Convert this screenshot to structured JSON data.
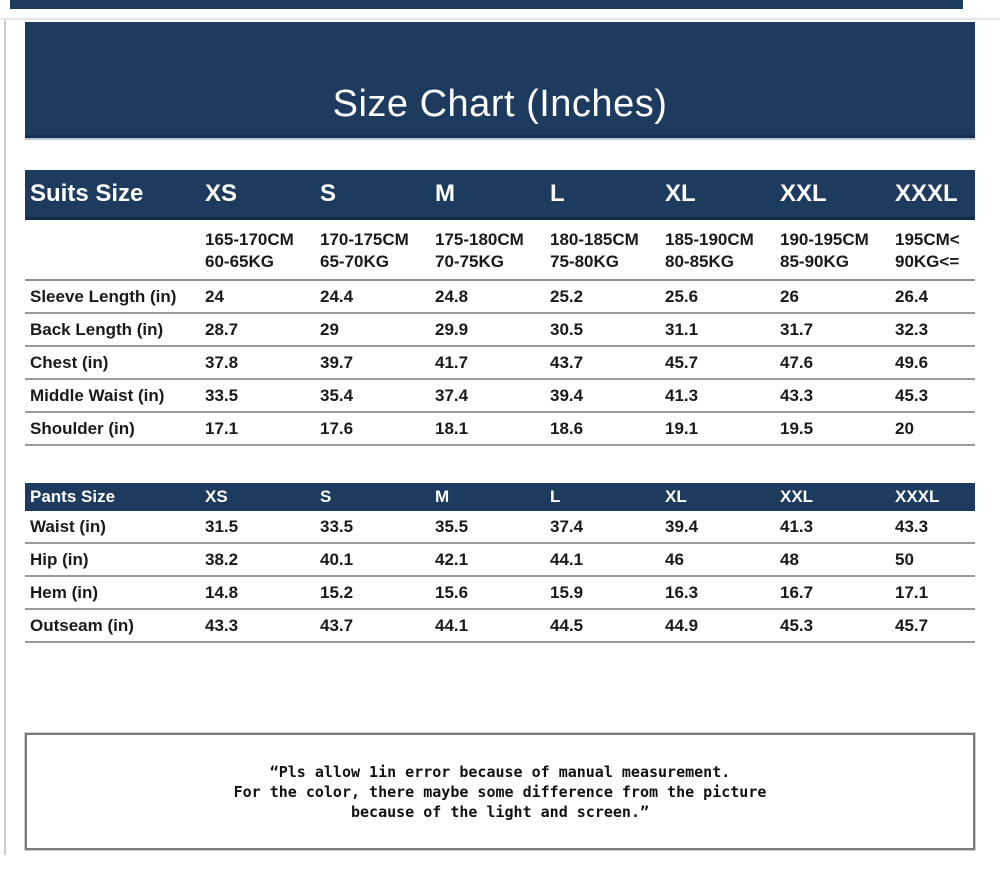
{
  "banner": {
    "title": "Size Chart (Inches)"
  },
  "suits": {
    "header_label": "Suits Size",
    "sizes": [
      "XS",
      "S",
      "M",
      "L",
      "XL",
      "XXL",
      "XXXL"
    ],
    "height_weight": [
      {
        "cm": "165-170CM",
        "kg": "60-65KG"
      },
      {
        "cm": "170-175CM",
        "kg": "65-70KG"
      },
      {
        "cm": "175-180CM",
        "kg": "70-75KG"
      },
      {
        "cm": "180-185CM",
        "kg": "75-80KG"
      },
      {
        "cm": "185-190CM",
        "kg": "80-85KG"
      },
      {
        "cm": "190-195CM",
        "kg": "85-90KG"
      },
      {
        "cm": "195CM<",
        "kg": "90KG<="
      }
    ],
    "rows": [
      {
        "label": "Sleeve Length (in)",
        "values": [
          "24",
          "24.4",
          "24.8",
          "25.2",
          "25.6",
          "26",
          "26.4"
        ]
      },
      {
        "label": "Back Length (in)",
        "values": [
          "28.7",
          "29",
          "29.9",
          "30.5",
          "31.1",
          "31.7",
          "32.3"
        ]
      },
      {
        "label": "Chest (in)",
        "values": [
          "37.8",
          "39.7",
          "41.7",
          "43.7",
          "45.7",
          "47.6",
          "49.6"
        ]
      },
      {
        "label": "Middle Waist (in)",
        "values": [
          "33.5",
          "35.4",
          "37.4",
          "39.4",
          "41.3",
          "43.3",
          "45.3"
        ]
      },
      {
        "label": "Shoulder (in)",
        "values": [
          "17.1",
          "17.6",
          "18.1",
          "18.6",
          "19.1",
          "19.5",
          "20"
        ]
      }
    ]
  },
  "pants": {
    "header_label": "Pants Size",
    "sizes": [
      "XS",
      "S",
      "M",
      "L",
      "XL",
      "XXL",
      "XXXL"
    ],
    "rows": [
      {
        "label": "Waist (in)",
        "values": [
          "31.5",
          "33.5",
          "35.5",
          "37.4",
          "39.4",
          "41.3",
          "43.3"
        ]
      },
      {
        "label": "Hip (in)",
        "values": [
          "38.2",
          "40.1",
          "42.1",
          "44.1",
          "46",
          "48",
          "50"
        ]
      },
      {
        "label": "Hem (in)",
        "values": [
          "14.8",
          "15.2",
          "15.6",
          "15.9",
          "16.3",
          "16.7",
          "17.1"
        ]
      },
      {
        "label": "Outseam (in)",
        "values": [
          "43.3",
          "43.7",
          "44.1",
          "44.5",
          "44.9",
          "45.3",
          "45.7"
        ]
      }
    ]
  },
  "note": {
    "lines": [
      "“Pls allow 1in error because of manual measurement.",
      "For the color, there maybe some difference from the picture",
      "because of the light and screen.”"
    ]
  },
  "colors": {
    "navy": "#1d3a5f",
    "separator": "#9a9a9a",
    "text": "#1a1a1a",
    "note_border": "#7a7a7a"
  }
}
